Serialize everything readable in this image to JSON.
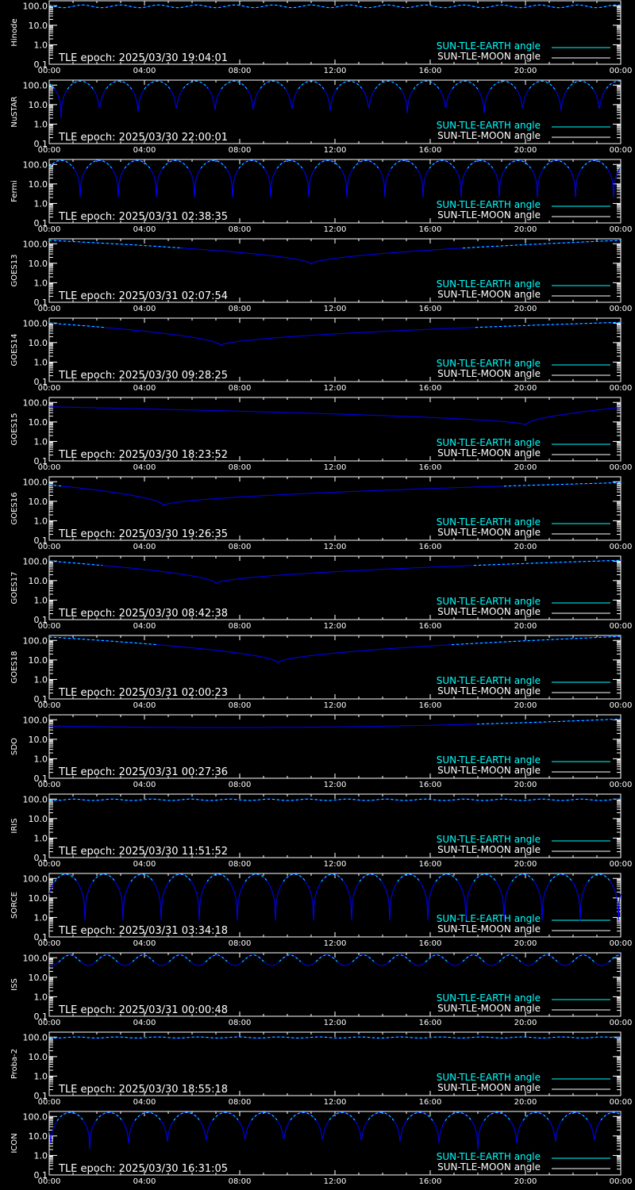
{
  "colors": {
    "background": "#000000",
    "axis": "#ffffff",
    "earth_angle": "#00ffff",
    "moon_angle": "#ffffff",
    "curve": "#0000ff"
  },
  "legend": {
    "earth_label": "SUN-TLE-EARTH angle",
    "moon_label": "SUN-TLE-MOON angle"
  },
  "x_ticks": [
    "00:00",
    "04:00",
    "08:00",
    "12:00",
    "16:00",
    "20:00",
    "00:00"
  ],
  "y_ticks": [
    "100.0",
    "10.0",
    "1.0",
    "0.1"
  ],
  "chart_data": [
    {
      "type": "line",
      "ylabel": "Hinode",
      "epoch": "TLE epoch: 2025/03/30 19:04:01",
      "xlim": [
        0,
        24
      ],
      "ylim": [
        0.1,
        180
      ],
      "yscale": "log",
      "pattern": "orbit",
      "period_h": 1.6,
      "phase_h": 0.6,
      "min_y": 80,
      "max_y": 110,
      "shape": "sin"
    },
    {
      "type": "line",
      "ylabel": "NuSTAR",
      "epoch": "TLE epoch: 2025/03/30 22:00:01",
      "xlim": [
        0,
        24
      ],
      "ylim": [
        0.1,
        180
      ],
      "yscale": "log",
      "pattern": "orbit",
      "period_h": 1.615,
      "phase_h": 0.5,
      "min_y": 2.0,
      "max_y": 160,
      "shape": "cusp"
    },
    {
      "type": "line",
      "ylabel": "Fermi",
      "epoch": "TLE epoch: 2025/03/31 02:38:35",
      "xlim": [
        0,
        24
      ],
      "ylim": [
        0.1,
        180
      ],
      "yscale": "log",
      "pattern": "orbit",
      "period_h": 1.6,
      "phase_h": 1.3,
      "min_y": 2.0,
      "max_y": 160,
      "shape": "cusp"
    },
    {
      "type": "line",
      "ylabel": "GOES13",
      "epoch": "TLE epoch: 2025/03/31 02:07:54",
      "xlim": [
        0,
        24
      ],
      "ylim": [
        0.1,
        180
      ],
      "yscale": "log",
      "pattern": "geo",
      "min_x": 11.0,
      "min_y": 9,
      "left_y": 150,
      "right_y": 150
    },
    {
      "type": "line",
      "ylabel": "GOES14",
      "epoch": "TLE epoch: 2025/03/30 09:28:25",
      "xlim": [
        0,
        24
      ],
      "ylim": [
        0.1,
        180
      ],
      "yscale": "log",
      "pattern": "geo",
      "min_x": 7.2,
      "min_y": 7,
      "left_y": 100,
      "right_y": 110
    },
    {
      "type": "line",
      "ylabel": "GOES15",
      "epoch": "TLE epoch: 2025/03/30 18:23:52",
      "xlim": [
        0,
        24
      ],
      "ylim": [
        0.1,
        180
      ],
      "yscale": "log",
      "pattern": "geo",
      "min_x": 20.0,
      "min_y": 7,
      "left_y": 60,
      "right_y": 55
    },
    {
      "type": "line",
      "ylabel": "GOES16",
      "epoch": "TLE epoch: 2025/03/30 19:26:35",
      "xlim": [
        0,
        24
      ],
      "ylim": [
        0.1,
        180
      ],
      "yscale": "log",
      "pattern": "geo",
      "min_x": 4.8,
      "min_y": 6,
      "left_y": 70,
      "right_y": 90
    },
    {
      "type": "line",
      "ylabel": "GOES17",
      "epoch": "TLE epoch: 2025/03/30 08:42:38",
      "xlim": [
        0,
        24
      ],
      "ylim": [
        0.1,
        180
      ],
      "yscale": "log",
      "pattern": "geo",
      "min_x": 7.0,
      "min_y": 7,
      "left_y": 100,
      "right_y": 110
    },
    {
      "type": "line",
      "ylabel": "GOES18",
      "epoch": "TLE epoch: 2025/03/31 02:00:23",
      "xlim": [
        0,
        24
      ],
      "ylim": [
        0.1,
        180
      ],
      "yscale": "log",
      "pattern": "geo",
      "min_x": 9.6,
      "min_y": 7,
      "left_y": 150,
      "right_y": 160
    },
    {
      "type": "line",
      "ylabel": "SDO",
      "epoch": "TLE epoch: 2025/03/31 00:27:36",
      "xlim": [
        0,
        24
      ],
      "ylim": [
        0.1,
        180
      ],
      "yscale": "log",
      "pattern": "smooth",
      "min_x": 7.5,
      "min_y": 40,
      "left_y": 100,
      "right_y": 110
    },
    {
      "type": "line",
      "ylabel": "IRIS",
      "epoch": "TLE epoch: 2025/03/30 11:51:52",
      "xlim": [
        0,
        24
      ],
      "ylim": [
        0.1,
        180
      ],
      "yscale": "log",
      "pattern": "orbit",
      "period_h": 1.64,
      "phase_h": 0.2,
      "min_y": 85,
      "max_y": 100,
      "shape": "sin"
    },
    {
      "type": "line",
      "ylabel": "SORCE",
      "epoch": "TLE epoch: 2025/03/31 03:34:18",
      "xlim": [
        0,
        24
      ],
      "ylim": [
        0.1,
        180
      ],
      "yscale": "log",
      "pattern": "orbit",
      "period_h": 1.6,
      "phase_h": 1.5,
      "min_y": 0.7,
      "max_y": 165,
      "shape": "cusp"
    },
    {
      "type": "line",
      "ylabel": "ISS",
      "epoch": "TLE epoch: 2025/03/31 00:00:48",
      "xlim": [
        0,
        24
      ],
      "ylim": [
        0.1,
        180
      ],
      "yscale": "log",
      "pattern": "orbit",
      "period_h": 1.54,
      "phase_h": 0.1,
      "min_y": 40,
      "max_y": 140,
      "shape": "sin"
    },
    {
      "type": "line",
      "ylabel": "Proba-2",
      "epoch": "TLE epoch: 2025/03/30 18:55:18",
      "xlim": [
        0,
        24
      ],
      "ylim": [
        0.1,
        180
      ],
      "yscale": "log",
      "pattern": "orbit",
      "period_h": 1.7,
      "phase_h": 0.3,
      "min_y": 90,
      "max_y": 102,
      "shape": "sin"
    },
    {
      "type": "line",
      "ylabel": "ICON",
      "epoch": "TLE epoch: 2025/03/30 16:31:05",
      "xlim": [
        0,
        24
      ],
      "ylim": [
        0.1,
        180
      ],
      "yscale": "log",
      "pattern": "orbit",
      "period_h": 1.63,
      "phase_h": 1.7,
      "min_y": 2.0,
      "max_y": 160,
      "shape": "cusp"
    }
  ]
}
